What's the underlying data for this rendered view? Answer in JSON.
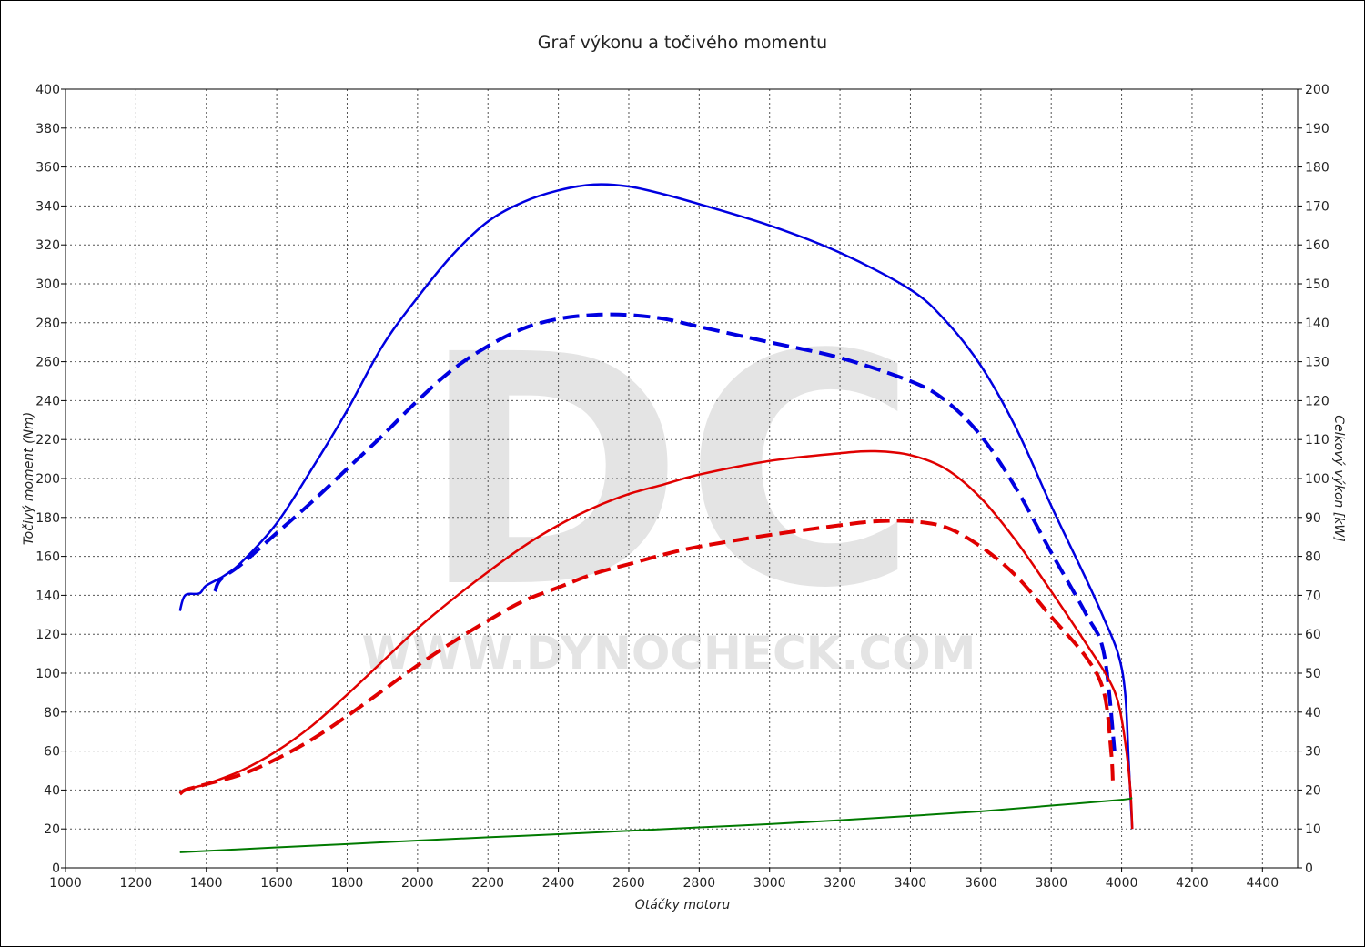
{
  "chart_data": {
    "type": "line",
    "title": "Graf výkonu a točivého momentu",
    "xlabel": "Otáčky motoru",
    "ylabel_left": "Točivý moment (Nm)",
    "ylabel_right": "Celkový výkon [kW]",
    "xlim": [
      1000,
      4500
    ],
    "ylim_left": [
      0,
      400
    ],
    "ylim_right": [
      0,
      200
    ],
    "x_ticks": [
      1000,
      1200,
      1400,
      1600,
      1800,
      2000,
      2200,
      2400,
      2600,
      2800,
      3000,
      3200,
      3400,
      3600,
      3800,
      4000,
      4200,
      4400
    ],
    "y_left_ticks": [
      0,
      20,
      40,
      60,
      80,
      100,
      120,
      140,
      160,
      180,
      200,
      220,
      240,
      260,
      280,
      300,
      320,
      340,
      360,
      380,
      400
    ],
    "y_right_ticks": [
      0,
      10,
      20,
      30,
      40,
      50,
      60,
      70,
      80,
      90,
      100,
      110,
      120,
      130,
      140,
      150,
      160,
      170,
      180,
      190,
      200
    ],
    "grid": true,
    "watermark": {
      "logo": "DC",
      "text": "WWW.DYNOCHECK.COM"
    },
    "series": [
      {
        "axis": "left",
        "color": "#0000e0",
        "dash": "solid",
        "points": [
          [
            1325,
            132
          ],
          [
            1340,
            140
          ],
          [
            1380,
            141
          ],
          [
            1400,
            145
          ],
          [
            1450,
            150
          ],
          [
            1500,
            157
          ],
          [
            1600,
            177
          ],
          [
            1700,
            205
          ],
          [
            1800,
            235
          ],
          [
            1900,
            268
          ],
          [
            2000,
            293
          ],
          [
            2100,
            315
          ],
          [
            2200,
            332
          ],
          [
            2300,
            342
          ],
          [
            2400,
            348
          ],
          [
            2500,
            351
          ],
          [
            2600,
            350
          ],
          [
            2700,
            346
          ],
          [
            2800,
            341
          ],
          [
            3000,
            330
          ],
          [
            3200,
            316
          ],
          [
            3400,
            297
          ],
          [
            3500,
            281
          ],
          [
            3600,
            258
          ],
          [
            3700,
            226
          ],
          [
            3800,
            186
          ],
          [
            3900,
            148
          ],
          [
            3950,
            128
          ],
          [
            3990,
            110
          ],
          [
            4010,
            90
          ],
          [
            4020,
            55
          ],
          [
            4030,
            20
          ]
        ]
      },
      {
        "axis": "left",
        "color": "#0000e0",
        "dash": "dashed",
        "points": [
          [
            1425,
            142
          ],
          [
            1440,
            148
          ],
          [
            1500,
            156
          ],
          [
            1600,
            172
          ],
          [
            1700,
            188
          ],
          [
            1800,
            205
          ],
          [
            1900,
            222
          ],
          [
            2000,
            240
          ],
          [
            2100,
            256
          ],
          [
            2200,
            268
          ],
          [
            2300,
            277
          ],
          [
            2400,
            282
          ],
          [
            2500,
            284
          ],
          [
            2600,
            284
          ],
          [
            2700,
            282
          ],
          [
            2800,
            278
          ],
          [
            3000,
            270
          ],
          [
            3200,
            262
          ],
          [
            3400,
            250
          ],
          [
            3500,
            240
          ],
          [
            3600,
            222
          ],
          [
            3700,
            195
          ],
          [
            3800,
            162
          ],
          [
            3900,
            130
          ],
          [
            3950,
            110
          ],
          [
            3980,
            60
          ]
        ]
      },
      {
        "axis": "left",
        "color": "#e00000",
        "dash": "solid",
        "points": [
          [
            1325,
            38
          ],
          [
            1340,
            40
          ],
          [
            1380,
            42
          ],
          [
            1400,
            43
          ],
          [
            1500,
            50
          ],
          [
            1600,
            60
          ],
          [
            1700,
            73
          ],
          [
            1800,
            89
          ],
          [
            1900,
            106
          ],
          [
            2000,
            123
          ],
          [
            2100,
            138
          ],
          [
            2200,
            152
          ],
          [
            2300,
            165
          ],
          [
            2400,
            176
          ],
          [
            2500,
            185
          ],
          [
            2600,
            192
          ],
          [
            2700,
            197
          ],
          [
            2800,
            202
          ],
          [
            3000,
            209
          ],
          [
            3200,
            213
          ],
          [
            3300,
            214
          ],
          [
            3400,
            212
          ],
          [
            3500,
            205
          ],
          [
            3600,
            190
          ],
          [
            3700,
            168
          ],
          [
            3800,
            142
          ],
          [
            3900,
            115
          ],
          [
            3960,
            98
          ],
          [
            3990,
            85
          ],
          [
            4010,
            65
          ],
          [
            4025,
            40
          ],
          [
            4030,
            20
          ]
        ]
      },
      {
        "axis": "left",
        "color": "#e00000",
        "dash": "dashed",
        "points": [
          [
            1325,
            38
          ],
          [
            1340,
            40
          ],
          [
            1380,
            42
          ],
          [
            1400,
            43
          ],
          [
            1500,
            48
          ],
          [
            1600,
            56
          ],
          [
            1700,
            66
          ],
          [
            1800,
            78
          ],
          [
            1900,
            91
          ],
          [
            2000,
            104
          ],
          [
            2100,
            116
          ],
          [
            2200,
            127
          ],
          [
            2300,
            137
          ],
          [
            2400,
            144
          ],
          [
            2500,
            151
          ],
          [
            2600,
            156
          ],
          [
            2700,
            161
          ],
          [
            2800,
            165
          ],
          [
            3000,
            171
          ],
          [
            3200,
            176
          ],
          [
            3300,
            178
          ],
          [
            3400,
            178
          ],
          [
            3500,
            175
          ],
          [
            3600,
            165
          ],
          [
            3700,
            150
          ],
          [
            3800,
            129
          ],
          [
            3900,
            108
          ],
          [
            3950,
            90
          ],
          [
            3970,
            60
          ],
          [
            3975,
            45
          ]
        ]
      },
      {
        "axis": "left",
        "color": "#007a00",
        "dash": "solid",
        "points": [
          [
            1325,
            8
          ],
          [
            1600,
            10.5
          ],
          [
            1800,
            12.2
          ],
          [
            2000,
            14
          ],
          [
            2200,
            15.7
          ],
          [
            2400,
            17.3
          ],
          [
            2600,
            19
          ],
          [
            2800,
            20.8
          ],
          [
            3000,
            22.5
          ],
          [
            3200,
            24.5
          ],
          [
            3400,
            26.7
          ],
          [
            3600,
            29
          ],
          [
            3800,
            32
          ],
          [
            4000,
            35
          ],
          [
            4030,
            36
          ]
        ]
      }
    ]
  }
}
